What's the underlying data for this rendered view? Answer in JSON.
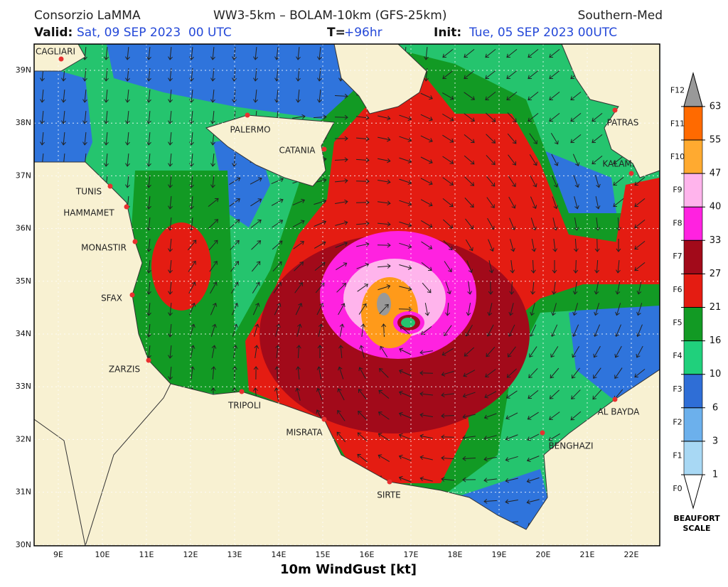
{
  "header": {
    "source": "Consorzio LaMMA",
    "models": "WW3-5km – BOLAM-10km (GFS-25km)",
    "domain": "Southern-Med",
    "valid_label": "Valid:",
    "valid": "Sat, 09 SEP 2023  00 UTC",
    "lead_label": "T=",
    "lead": "+96hr",
    "init_label": "Init:",
    "init": "Tue, 05 SEP 2023 00UTC"
  },
  "map": {
    "lat_labels": [
      "39N",
      "38N",
      "37N",
      "36N",
      "35N",
      "34N",
      "33N",
      "32N",
      "31N",
      "30N"
    ],
    "lon_labels": [
      "9E",
      "10E",
      "11E",
      "12E",
      "13E",
      "14E",
      "15E",
      "16E",
      "17E",
      "18E",
      "19E",
      "20E",
      "21E",
      "22E"
    ],
    "cities": [
      "CAGLIARI",
      "PALERMO",
      "CATANIA",
      "TUNIS",
      "HAMMAMET",
      "MONASTIR",
      "SFAX",
      "ZARZIS",
      "TRIPOLI",
      "MISRATA",
      "SIRTE",
      "BENGHAZI",
      "AL BAYDA",
      "PATRAS",
      "KALAM."
    ],
    "axis_title": "10m WindGust [kt]"
  },
  "legend": {
    "knots": [
      "1",
      "3",
      "6",
      "10",
      "16",
      "21",
      "27",
      "33",
      "40",
      "47",
      "55",
      "63"
    ],
    "beaufort": [
      "F0",
      "F1",
      "F2",
      "F3",
      "F4",
      "F5",
      "F6",
      "F7",
      "F8",
      "F9",
      "F10",
      "F11",
      "F12"
    ],
    "title": [
      "BEAUFORT",
      "SCALE"
    ]
  }
}
